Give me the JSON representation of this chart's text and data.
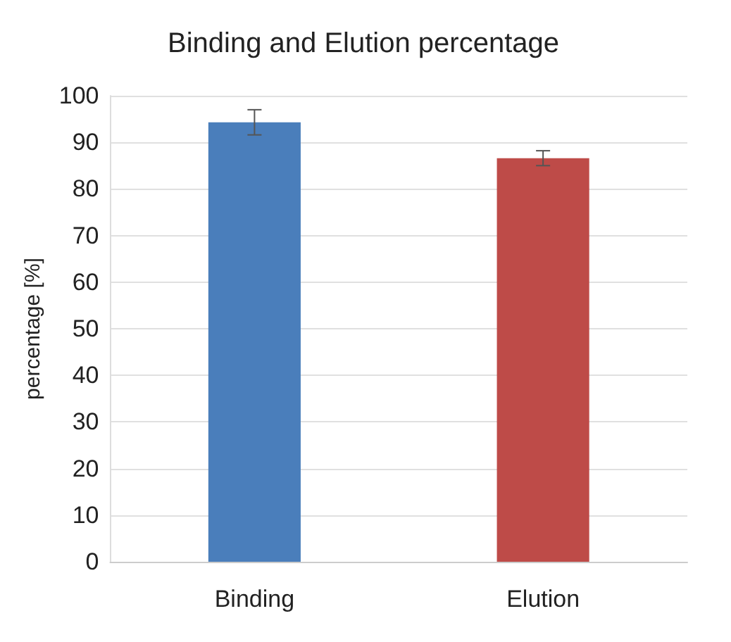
{
  "chart_data": {
    "type": "bar",
    "title": "Binding and Elution percentage",
    "ylabel": "percentage [%]",
    "categories": [
      "Binding",
      "Elution"
    ],
    "values": [
      94.3,
      86.6
    ],
    "colors": [
      "#4a7ebb",
      "#be4b48"
    ],
    "errors": [
      2.7,
      1.6
    ],
    "ylim": [
      0,
      100
    ],
    "yticks": [
      0,
      10,
      20,
      30,
      40,
      50,
      60,
      70,
      80,
      90,
      100
    ],
    "grid": "y"
  }
}
